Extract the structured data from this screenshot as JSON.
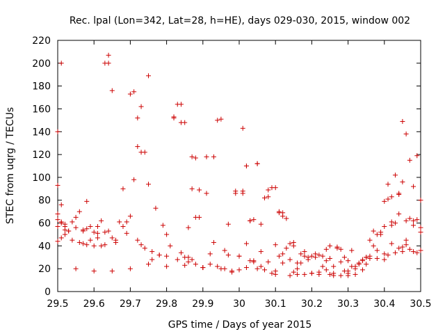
{
  "chart_data": {
    "type": "scatter",
    "title": "Rec. lpal (Lon=342, Lat=28, h=HE), days 029-030, 2015, window 002",
    "xlabel": "GPS time / Days of year 2015",
    "ylabel": "STEC from uqrg / TECUs",
    "xlim": [
      29.5,
      30.5
    ],
    "ylim": [
      0,
      220
    ],
    "xticks": [
      "29.5",
      "29.6",
      "29.7",
      "29.8",
      "29.9",
      "30",
      "30.1",
      "30.2",
      "30.3",
      "30.4",
      "30.5"
    ],
    "yticks": [
      "0",
      "20",
      "40",
      "60",
      "80",
      "100",
      "120",
      "140",
      "160",
      "180",
      "200",
      "220"
    ],
    "grid": false,
    "legend": "none",
    "marker": "+",
    "color": "#cc0000",
    "x": [
      29.5,
      29.5,
      29.5,
      29.5,
      29.5,
      29.5,
      29.51,
      29.51,
      29.51,
      29.51,
      29.51,
      29.52,
      29.52,
      29.52,
      29.53,
      29.54,
      29.54,
      29.55,
      29.55,
      29.56,
      29.56,
      29.57,
      29.57,
      29.58,
      29.58,
      29.58,
      29.59,
      29.6,
      29.6,
      29.61,
      29.61,
      29.62,
      29.62,
      29.63,
      29.63,
      29.64,
      29.64,
      29.65,
      29.66,
      29.67,
      29.68,
      29.69,
      29.7,
      29.71,
      29.72,
      29.72,
      29.73,
      29.73,
      29.74,
      29.75,
      29.76,
      29.77,
      29.78,
      29.79,
      29.8,
      29.82,
      29.83,
      29.84,
      29.84,
      29.85,
      29.85,
      29.86,
      29.86,
      29.87,
      29.87,
      29.88,
      29.88,
      29.89,
      29.9,
      29.91,
      29.92,
      29.93,
      29.94,
      29.95,
      29.96,
      29.97,
      29.98,
      29.99,
      30.0,
      30.01,
      30.01,
      30.02,
      30.02,
      30.03,
      30.03,
      30.04,
      30.05,
      30.06,
      30.07,
      30.08,
      30.09,
      30.1,
      30.1,
      30.11,
      30.11,
      30.12,
      30.12,
      30.13,
      30.14,
      30.15,
      30.16,
      30.17,
      30.18,
      30.19,
      30.2,
      30.21,
      30.22,
      30.23,
      30.24,
      30.25,
      30.26,
      30.27,
      30.28,
      30.29,
      30.3,
      30.31,
      30.32,
      30.33,
      30.34,
      30.35,
      30.36,
      30.37,
      30.38,
      30.39,
      30.4,
      30.4,
      30.41,
      30.41,
      30.42,
      30.42,
      30.43,
      30.43,
      30.44,
      30.44,
      30.45,
      30.45,
      30.46,
      30.46,
      30.47,
      30.47,
      30.48,
      30.48,
      30.49,
      30.49,
      30.5,
      30.5,
      29.55,
      29.6,
      29.65,
      29.7,
      29.75,
      29.8,
      29.85,
      29.9,
      29.95,
      30.0,
      30.05,
      30.1,
      30.15,
      30.2,
      30.25,
      30.3,
      30.35,
      30.4,
      30.45,
      30.5
    ],
    "y": [
      93,
      140,
      68,
      63,
      57,
      44,
      200,
      76,
      61,
      47,
      60,
      59,
      54,
      50,
      53,
      61,
      45,
      65,
      56,
      43,
      70,
      54,
      42,
      79,
      55,
      41,
      57,
      52,
      40,
      57,
      51,
      40,
      62,
      52,
      41,
      200,
      53,
      47,
      43,
      61,
      90,
      61,
      66,
      98,
      45,
      127,
      41,
      122,
      38,
      94,
      35,
      73,
      32,
      58,
      31,
      153,
      28,
      164,
      34,
      148,
      30,
      56,
      26,
      118,
      28,
      65,
      24,
      89,
      21,
      86,
      24,
      118,
      22,
      151,
      20,
      59,
      18,
      88,
      31,
      143,
      88,
      21,
      110,
      27,
      62,
      26,
      112,
      22,
      19,
      83,
      16,
      91,
      15,
      70,
      31,
      66,
      25,
      64,
      14,
      43,
      15,
      25,
      15,
      30,
      16,
      30,
      15,
      31,
      19,
      29,
      14,
      39,
      14,
      30,
      14,
      22,
      15,
      25,
      19,
      30,
      29,
      40,
      29,
      52,
      33,
      57,
      32,
      94,
      42,
      83,
      34,
      102,
      38,
      85,
      39,
      149,
      41,
      138,
      37,
      115,
      35,
      92,
      34,
      119,
      36,
      80,
      20,
      18,
      18,
      20,
      24,
      22,
      23,
      21,
      20,
      19,
      20,
      18,
      17,
      16,
      15,
      16,
      24,
      28,
      35,
      56
    ],
    "x_extra": [
      29.63,
      29.64,
      29.65,
      29.7,
      29.71,
      29.72,
      29.73,
      29.74,
      29.75,
      29.82,
      29.83,
      29.84,
      29.87,
      29.88,
      29.89,
      29.9,
      29.91,
      29.93,
      29.94,
      29.99,
      30.01,
      30.02,
      30.03,
      30.04,
      30.05,
      30.06,
      30.07,
      30.08,
      30.09,
      30.1,
      30.11,
      30.12,
      30.13,
      30.14,
      30.15,
      30.16,
      30.17,
      30.18,
      30.19,
      30.2,
      30.21,
      30.22,
      30.23,
      30.24,
      30.25,
      30.26,
      30.27,
      30.28,
      30.29,
      30.3,
      30.31,
      30.32,
      30.33,
      30.34,
      30.35,
      30.36,
      30.37,
      30.38,
      30.39,
      30.4,
      30.41,
      30.42,
      30.43,
      30.44,
      30.45,
      30.46,
      30.47,
      30.48,
      30.49,
      30.5,
      29.52,
      29.53,
      29.57,
      29.59,
      29.61,
      29.66,
      29.68,
      29.69,
      29.76,
      29.78,
      29.8,
      29.81,
      29.86,
      29.92,
      29.96,
      29.97,
      29.98,
      30.0,
      30.02,
      30.04,
      30.06,
      30.08,
      30.12,
      30.14,
      30.16,
      30.18,
      30.22,
      30.24,
      30.26,
      30.28,
      30.3,
      30.32,
      30.34,
      30.36,
      30.38,
      30.42,
      30.44,
      30.46,
      30.48
    ],
    "y_extra": [
      200,
      207,
      176,
      173,
      175,
      152,
      162,
      122,
      189,
      152,
      164,
      148,
      90,
      117,
      65,
      21,
      118,
      43,
      150,
      86,
      86,
      110,
      62,
      63,
      112,
      59,
      82,
      89,
      91,
      41,
      69,
      69,
      38,
      42,
      40,
      20,
      33,
      31,
      28,
      31,
      33,
      32,
      22,
      37,
      40,
      22,
      38,
      37,
      18,
      27,
      36,
      20,
      24,
      27,
      30,
      45,
      53,
      50,
      50,
      79,
      81,
      61,
      60,
      86,
      96,
      62,
      64,
      62,
      63,
      52,
      57,
      53,
      53,
      45,
      47,
      45,
      57,
      51,
      28,
      32,
      50,
      40,
      30,
      33,
      36,
      32,
      17,
      31,
      42,
      27,
      35,
      26,
      33,
      28,
      25,
      35,
      17,
      27,
      16,
      26,
      18,
      22,
      28,
      31,
      36,
      58,
      68,
      45,
      58
    ]
  }
}
